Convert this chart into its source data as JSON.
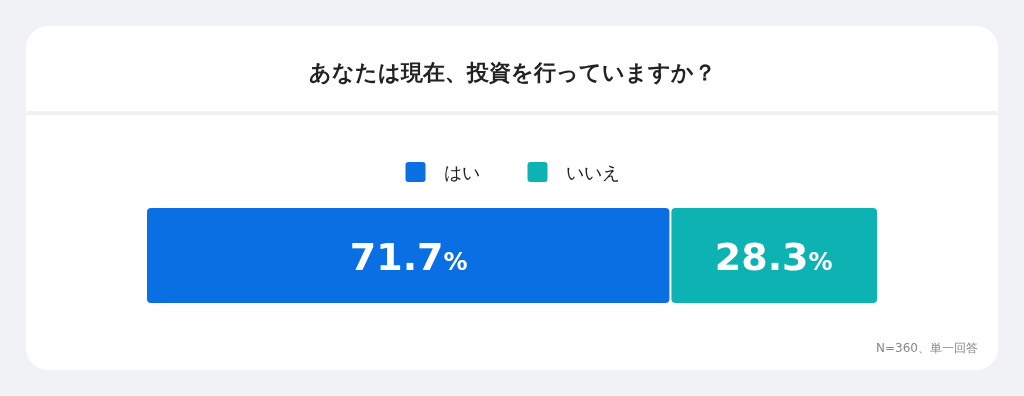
{
  "chart_data": {
    "type": "bar",
    "orientation": "horizontal",
    "stacked": true,
    "title": "あなたは現在、投資を行っていますか？",
    "categories": [
      null
    ],
    "xlim": [
      0,
      100
    ],
    "tick_labels": false,
    "legend": "top",
    "series": [
      {
        "name": "はい",
        "color": "#0a6fe3",
        "values": [
          71.7
        ],
        "value_labels": [
          "71.7%"
        ]
      },
      {
        "name": "いいえ",
        "color": "#0db3b3",
        "values": [
          28.3
        ],
        "value_labels": [
          "28.3%"
        ]
      }
    ],
    "annotations": [
      "N=360、単一回答"
    ]
  }
}
